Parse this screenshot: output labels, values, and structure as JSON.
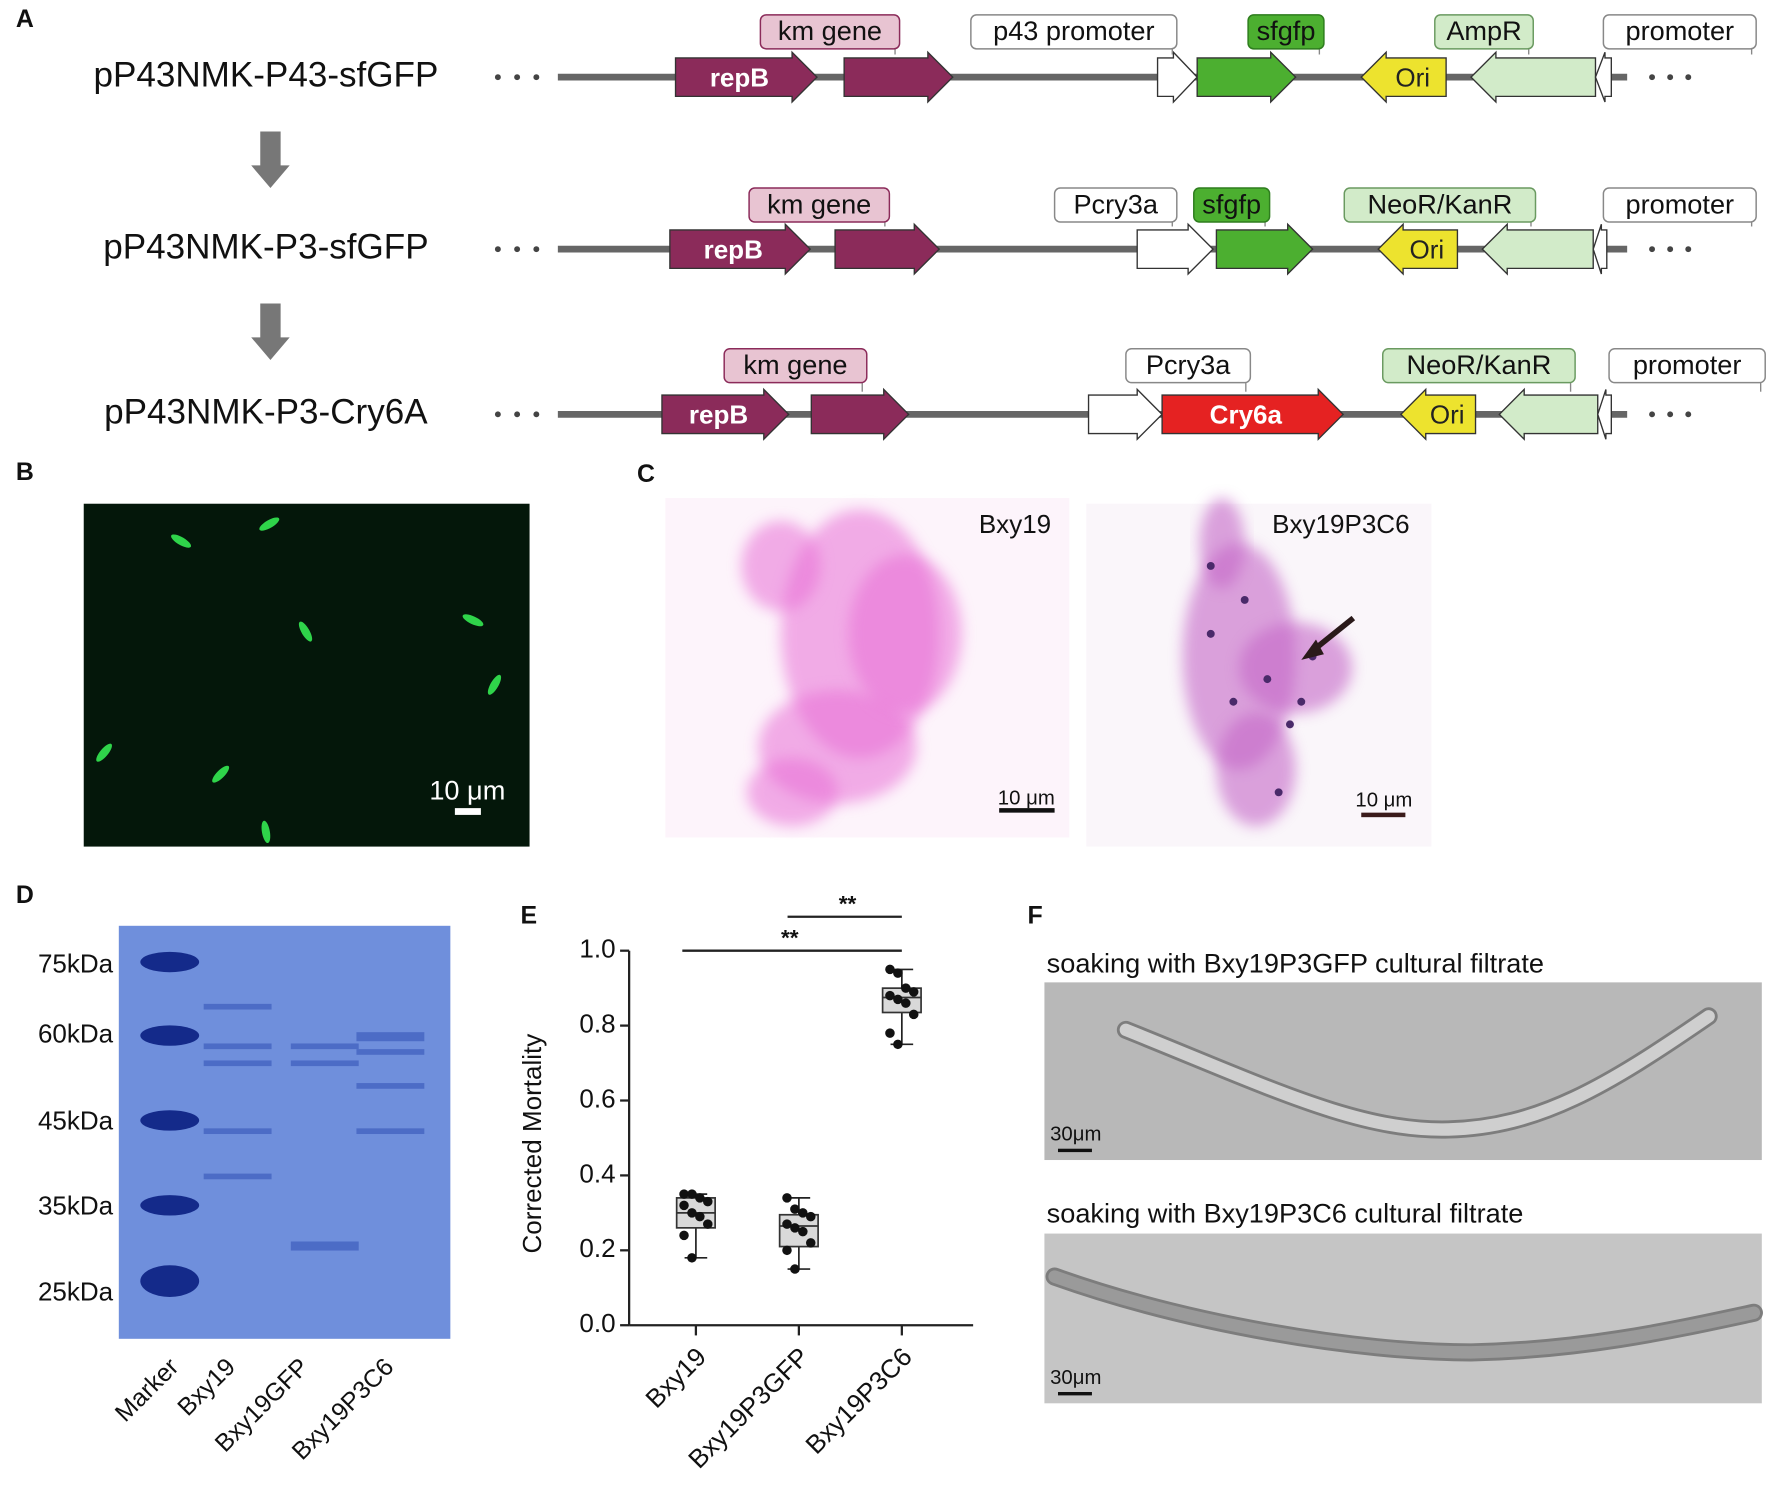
{
  "panel_labels": [
    "A",
    "B",
    "C",
    "D",
    "E",
    "F"
  ],
  "constructs": [
    {
      "name": "pP43NMK-P43-sfGFP",
      "labels": [
        "km gene",
        "p43 promoter",
        "sfgfp",
        "AmpR",
        "promoter"
      ],
      "arrows": [
        "repB",
        "Ori"
      ]
    },
    {
      "name": "pP43NMK-P3-sfGFP",
      "labels": [
        "km gene",
        "Pcry3a",
        "sfgfp",
        "NeoR/KanR",
        "promoter"
      ],
      "arrows": [
        "repB",
        "Ori"
      ]
    },
    {
      "name": "pP43NMK-P3-Cry6A",
      "labels": [
        "km gene",
        "Pcry3a",
        "NeoR/KanR",
        "promoter"
      ],
      "arrows": [
        "repB",
        "Cry6a",
        "Ori"
      ]
    }
  ],
  "fluorescence": {
    "scale_bar": "10 μm"
  },
  "staining": [
    {
      "label": "Bxy19",
      "scale_bar": "10 μm"
    },
    {
      "label": "Bxy19P3C6",
      "scale_bar": "10 μm"
    }
  ],
  "gel": {
    "markers": [
      "75kDa",
      "60kDa",
      "45kDa",
      "35kDa",
      "25kDa"
    ],
    "lanes": [
      "Marker",
      "Bxy19",
      "Bxy19GFP",
      "Bxy19P3C6"
    ]
  },
  "chart_data": {
    "type": "box",
    "ylabel": "Corrected Mortality",
    "categories": [
      "Bxy19",
      "Bxy19P3GFP",
      "Bxy19P3C6"
    ],
    "color": "#d9d9d9",
    "point_color": "#111111",
    "boxes": [
      {
        "min": 0.18,
        "q1": 0.26,
        "median": 0.3,
        "q3": 0.34,
        "max": 0.35,
        "points": [
          0.35,
          0.35,
          0.34,
          0.33,
          0.32,
          0.3,
          0.29,
          0.27,
          0.24,
          0.18
        ]
      },
      {
        "min": 0.15,
        "q1": 0.21,
        "median": 0.265,
        "q3": 0.295,
        "max": 0.34,
        "points": [
          0.34,
          0.31,
          0.3,
          0.29,
          0.27,
          0.26,
          0.25,
          0.22,
          0.2,
          0.15
        ]
      },
      {
        "min": 0.75,
        "q1": 0.835,
        "median": 0.875,
        "q3": 0.9,
        "max": 0.95,
        "points": [
          0.95,
          0.94,
          0.9,
          0.89,
          0.88,
          0.87,
          0.86,
          0.83,
          0.78,
          0.75
        ]
      }
    ],
    "ylim": [
      0,
      1.0
    ],
    "yticks": [
      {
        "value": 0,
        "label": "0.0"
      },
      {
        "value": 0.2,
        "label": "0.2"
      },
      {
        "value": 0.4,
        "label": "0.4"
      },
      {
        "value": 0.6,
        "label": "0.6"
      },
      {
        "value": 0.8,
        "label": "0.8"
      },
      {
        "value": 1.0,
        "label": "1.0"
      }
    ],
    "annotations": [
      "**",
      "**"
    ]
  },
  "soaking": [
    {
      "caption": "soaking with Bxy19P3GFP cultural filtrate",
      "scale_bar": "30μm"
    },
    {
      "caption": "soaking with Bxy19P3C6 cultural filtrate",
      "scale_bar": "30μm"
    }
  ]
}
